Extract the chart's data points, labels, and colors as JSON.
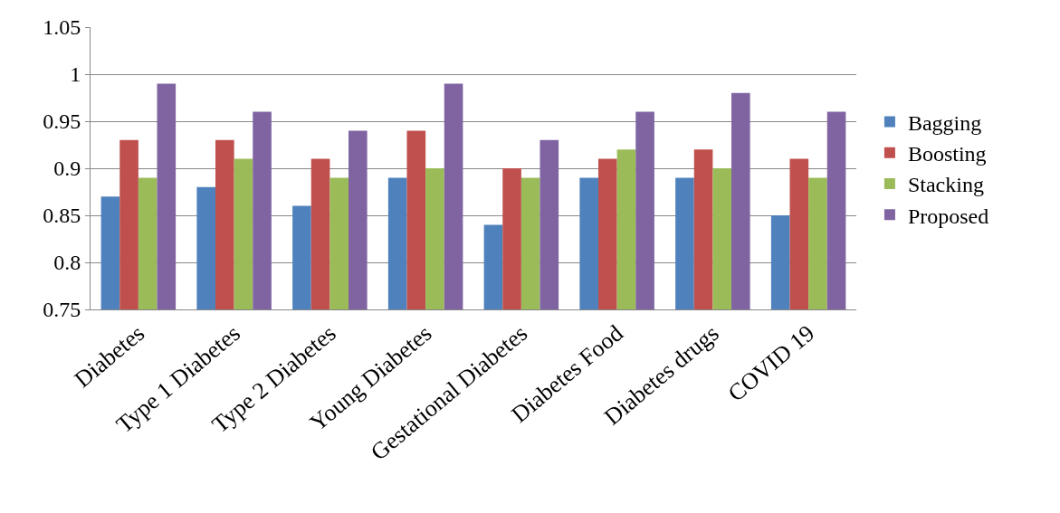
{
  "chart_data": {
    "type": "bar",
    "categories": [
      "Diabetes",
      "Type 1 Diabetes",
      "Type 2 Diabetes",
      "Young Diabetes",
      "Gestational Diabetes",
      "Diabetes Food",
      "Diabetes drugs",
      "COVID 19"
    ],
    "series": [
      {
        "name": "Bagging",
        "color": "#4f81bd",
        "values": [
          0.87,
          0.88,
          0.86,
          0.89,
          0.84,
          0.89,
          0.89,
          0.85
        ]
      },
      {
        "name": "Boosting",
        "color": "#c0504d",
        "values": [
          0.93,
          0.93,
          0.91,
          0.94,
          0.9,
          0.91,
          0.92,
          0.91
        ]
      },
      {
        "name": "Stacking",
        "color": "#9bbb59",
        "values": [
          0.89,
          0.91,
          0.89,
          0.9,
          0.89,
          0.92,
          0.9,
          0.89
        ]
      },
      {
        "name": "Proposed",
        "color": "#8064a2",
        "values": [
          0.99,
          0.96,
          0.94,
          0.99,
          0.93,
          0.96,
          0.98,
          0.96
        ]
      }
    ],
    "ylim": [
      0.75,
      1.05
    ],
    "yticks": [
      0.75,
      0.8,
      0.85,
      0.9,
      0.95,
      1,
      1.05
    ],
    "grid": "y",
    "legend": "right"
  }
}
